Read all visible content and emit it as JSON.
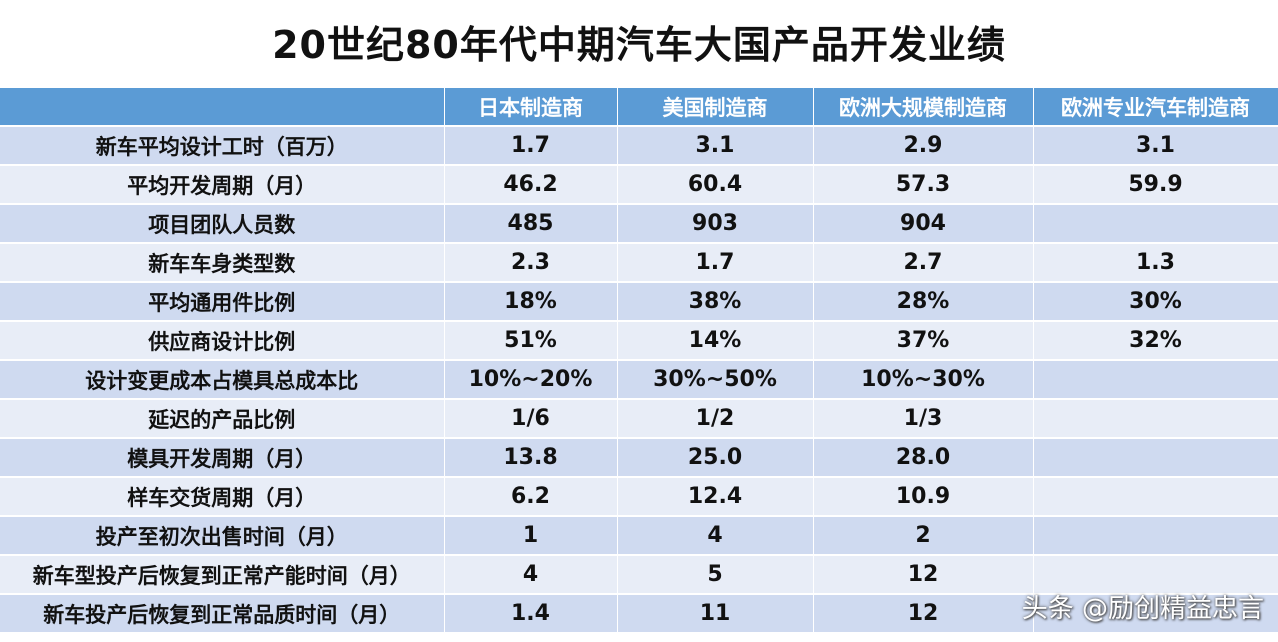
{
  "title": "20世纪80年代中期汽车大国产品开发业绩",
  "table": {
    "headers": [
      "",
      "日本制造商",
      "美国制造商",
      "欧洲大规模制造商",
      "欧洲专业汽车制造商"
    ],
    "rows": [
      [
        "新车平均设计工时（百万）",
        "1.7",
        "3.1",
        "2.9",
        "3.1"
      ],
      [
        "平均开发周期（月）",
        "46.2",
        "60.4",
        "57.3",
        "59.9"
      ],
      [
        "项目团队人员数",
        "485",
        "903",
        "904",
        ""
      ],
      [
        "新车车身类型数",
        "2.3",
        "1.7",
        "2.7",
        "1.3"
      ],
      [
        "平均通用件比例",
        "18%",
        "38%",
        "28%",
        "30%"
      ],
      [
        "供应商设计比例",
        "51%",
        "14%",
        "37%",
        "32%"
      ],
      [
        "设计变更成本占模具总成本比",
        "10%~20%",
        "30%~50%",
        "10%~30%",
        ""
      ],
      [
        "延迟的产品比例",
        "1/6",
        "1/2",
        "1/3",
        ""
      ],
      [
        "模具开发周期（月）",
        "13.8",
        "25.0",
        "28.0",
        ""
      ],
      [
        "样车交货周期（月）",
        "6.2",
        "12.4",
        "10.9",
        ""
      ],
      [
        "投产至初次出售时间（月）",
        "1",
        "4",
        "2",
        ""
      ],
      [
        "新车型投产后恢复到正常产能时间（月）",
        "4",
        "5",
        "12",
        ""
      ],
      [
        "新车投产后恢复到正常品质时间（月）",
        "1.4",
        "11",
        "12",
        ""
      ]
    ]
  },
  "watermark": "头条 @励创精益忠言",
  "colors": {
    "header_bg": "#5b9bd5",
    "row_odd_bg": "#cfdaf0",
    "row_even_bg": "#e8edf7"
  }
}
